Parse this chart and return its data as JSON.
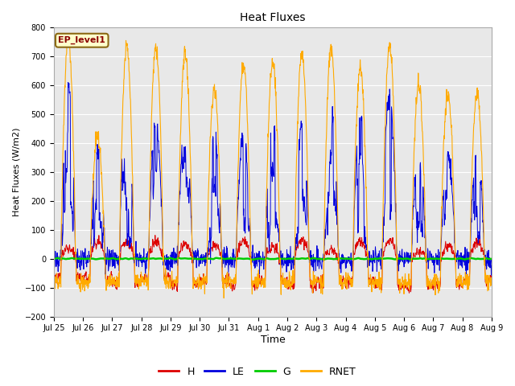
{
  "title": "Heat Fluxes",
  "xlabel": "Time",
  "ylabel": "Heat Fluxes (W/m2)",
  "ylim": [
    -200,
    800
  ],
  "yticks": [
    -200,
    -100,
    0,
    100,
    200,
    300,
    400,
    500,
    600,
    700,
    800
  ],
  "legend_labels": [
    "H",
    "LE",
    "G",
    "RNET"
  ],
  "colors": {
    "H": "#dd0000",
    "LE": "#0000dd",
    "G": "#00cc00",
    "RNET": "#ffaa00"
  },
  "annotation": "EP_level1",
  "bg_color": "#e8e8e8",
  "n_days": 15,
  "seed": 42
}
